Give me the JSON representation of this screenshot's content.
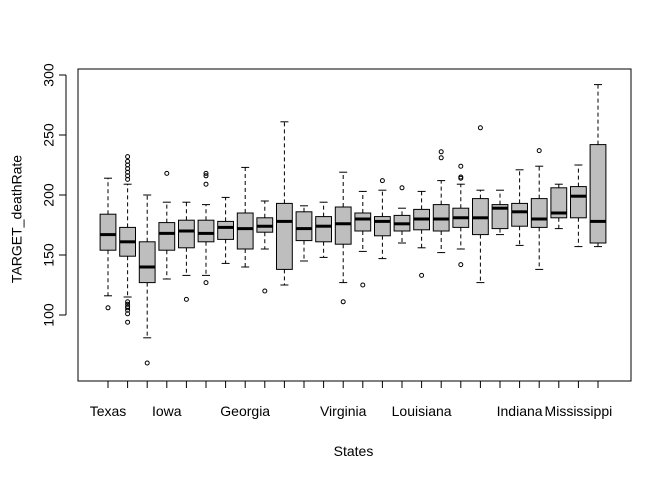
{
  "chart_data": {
    "type": "boxplot",
    "title": "",
    "xlabel": "States",
    "ylabel": "TARGET_deathRate",
    "ylim": [
      45,
      305
    ],
    "y_ticks": [
      100,
      150,
      200,
      250,
      300
    ],
    "x_tick_labels": [
      {
        "position": 1,
        "label": "Texas"
      },
      {
        "position": 4,
        "label": "Iowa"
      },
      {
        "position": 8,
        "label": "Georgia"
      },
      {
        "position": 13,
        "label": "Virginia"
      },
      {
        "position": 17,
        "label": "Louisiana"
      },
      {
        "position": 22,
        "label": "Indiana"
      },
      {
        "position": 25,
        "label": "Mississippi"
      }
    ],
    "box_fill": "#bebebe",
    "box_stroke": "#000000",
    "boxes": [
      {
        "q1": 154,
        "median": 167,
        "q3": 184,
        "low": 116,
        "high": 214,
        "outliers": [
          106
        ]
      },
      {
        "q1": 149,
        "median": 161,
        "q3": 173,
        "low": 115,
        "high": 209,
        "outliers": [
          94,
          101,
          104,
          106,
          107,
          109,
          111,
          213,
          216,
          219,
          222,
          225,
          228,
          232
        ]
      },
      {
        "q1": 127,
        "median": 140,
        "q3": 161,
        "low": 81,
        "high": 200,
        "outliers": [
          60
        ]
      },
      {
        "q1": 154,
        "median": 168,
        "q3": 177,
        "low": 130,
        "high": 194,
        "outliers": [
          218
        ]
      },
      {
        "q1": 156,
        "median": 170,
        "q3": 179,
        "low": 133,
        "high": 194,
        "outliers": [
          113
        ]
      },
      {
        "q1": 161,
        "median": 168,
        "q3": 179,
        "low": 133,
        "high": 192,
        "outliers": [
          127,
          209,
          216,
          218
        ]
      },
      {
        "q1": 163,
        "median": 173,
        "q3": 178,
        "low": 143,
        "high": 198,
        "outliers": []
      },
      {
        "q1": 155,
        "median": 172,
        "q3": 185,
        "low": 140,
        "high": 223,
        "outliers": []
      },
      {
        "q1": 169,
        "median": 174,
        "q3": 181,
        "low": 155,
        "high": 195,
        "outliers": [
          120
        ]
      },
      {
        "q1": 138,
        "median": 178,
        "q3": 193,
        "low": 125,
        "high": 261,
        "outliers": []
      },
      {
        "q1": 162,
        "median": 172,
        "q3": 186,
        "low": 145,
        "high": 191,
        "outliers": []
      },
      {
        "q1": 161,
        "median": 174,
        "q3": 182,
        "low": 148,
        "high": 194,
        "outliers": []
      },
      {
        "q1": 159,
        "median": 176,
        "q3": 190,
        "low": 127,
        "high": 219,
        "outliers": [
          111
        ]
      },
      {
        "q1": 170,
        "median": 180,
        "q3": 185,
        "low": 153,
        "high": 203,
        "outliers": [
          125
        ]
      },
      {
        "q1": 166,
        "median": 178,
        "q3": 182,
        "low": 147,
        "high": 204,
        "outliers": [
          212
        ]
      },
      {
        "q1": 170,
        "median": 176,
        "q3": 183,
        "low": 160,
        "high": 189,
        "outliers": [
          206
        ]
      },
      {
        "q1": 171,
        "median": 180,
        "q3": 188,
        "low": 156,
        "high": 203,
        "outliers": [
          133
        ]
      },
      {
        "q1": 170,
        "median": 180,
        "q3": 192,
        "low": 152,
        "high": 212,
        "outliers": [
          231,
          236
        ]
      },
      {
        "q1": 173,
        "median": 181,
        "q3": 189,
        "low": 155,
        "high": 209,
        "outliers": [
          142,
          214,
          215,
          224
        ]
      },
      {
        "q1": 167,
        "median": 181,
        "q3": 197,
        "low": 127,
        "high": 204,
        "outliers": [
          256
        ]
      },
      {
        "q1": 172,
        "median": 189,
        "q3": 192,
        "low": 167,
        "high": 204,
        "outliers": []
      },
      {
        "q1": 174,
        "median": 186,
        "q3": 193,
        "low": 158,
        "high": 221,
        "outliers": []
      },
      {
        "q1": 173,
        "median": 180,
        "q3": 197,
        "low": 138,
        "high": 224,
        "outliers": [
          237
        ]
      },
      {
        "q1": 181,
        "median": 185,
        "q3": 206,
        "low": 172,
        "high": 209,
        "outliers": []
      },
      {
        "q1": 181,
        "median": 199,
        "q3": 207,
        "low": 157,
        "high": 225,
        "outliers": []
      },
      {
        "q1": 160,
        "median": 178,
        "q3": 242,
        "low": 157,
        "high": 292,
        "outliers": []
      }
    ]
  }
}
